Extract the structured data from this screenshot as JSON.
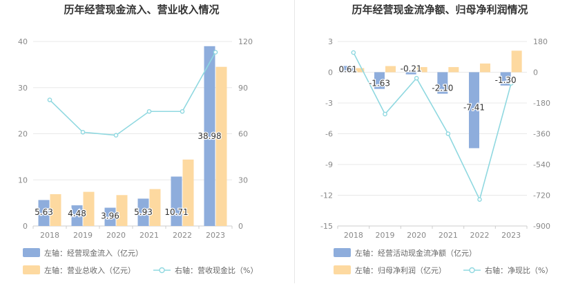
{
  "chart_data": [
    {
      "type": "bar+line",
      "title": "历年经营现金流入、营业收入情况",
      "categories": [
        "2018",
        "2019",
        "2020",
        "2021",
        "2022",
        "2023"
      ],
      "left_axis": {
        "min": 0,
        "max": 40,
        "ticks": [
          "0",
          "10",
          "20",
          "30",
          "40"
        ]
      },
      "right_axis": {
        "min": 0,
        "max": 120,
        "ticks": [
          "0",
          "30",
          "60",
          "90",
          "120"
        ]
      },
      "series": [
        {
          "name": "左轴：经营现金流入（亿元）",
          "kind": "bar",
          "axis": "left",
          "color": "#8eaddc",
          "values": [
            5.63,
            4.48,
            3.96,
            5.93,
            10.71,
            38.98
          ],
          "labels": [
            "5.63",
            "4.48",
            "3.96",
            "5.93",
            "10.71",
            "38.98"
          ]
        },
        {
          "name": "左轴：营业总收入（亿元）",
          "kind": "bar",
          "axis": "left",
          "color": "#fdd9a0",
          "values": [
            6.9,
            7.4,
            6.7,
            8.0,
            14.4,
            34.5
          ]
        },
        {
          "name": "右轴：营收现金比（%）",
          "kind": "line",
          "axis": "right",
          "color": "#8fd8e0",
          "values": [
            82,
            61,
            59,
            74.5,
            74.5,
            113
          ]
        }
      ]
    },
    {
      "type": "bar+line",
      "title": "历年经营现金流净额、归母净利润情况",
      "categories": [
        "2018",
        "2019",
        "2020",
        "2021",
        "2022",
        "2023"
      ],
      "left_axis": {
        "min": -15,
        "max": 3,
        "ticks": [
          "3",
          "0",
          "-3",
          "-6",
          "-9",
          "-12",
          "-15"
        ]
      },
      "right_axis": {
        "min": -900,
        "max": 180,
        "ticks": [
          "180",
          "0",
          "-180",
          "-360",
          "-540",
          "-720",
          "-900"
        ]
      },
      "series": [
        {
          "name": "左轴：经营活动现金流净额（亿元）",
          "kind": "bar",
          "axis": "left",
          "color": "#8eaddc",
          "values": [
            0.61,
            -1.63,
            -0.21,
            -2.1,
            -7.41,
            -1.3
          ],
          "labels": [
            "0.61",
            "-1.63",
            "-0.21",
            "-2.10",
            "-7.41",
            "-1.30"
          ]
        },
        {
          "name": "左轴：归母净利润（亿元）",
          "kind": "bar",
          "axis": "left",
          "color": "#fdd9a0",
          "values": [
            0.4,
            0.6,
            0.5,
            0.5,
            0.85,
            2.1
          ]
        },
        {
          "name": "右轴：净现比（%）",
          "kind": "line",
          "axis": "right",
          "color": "#8fd8e0",
          "values": [
            115,
            -245,
            -35,
            -360,
            -745,
            -65
          ]
        }
      ]
    }
  ]
}
